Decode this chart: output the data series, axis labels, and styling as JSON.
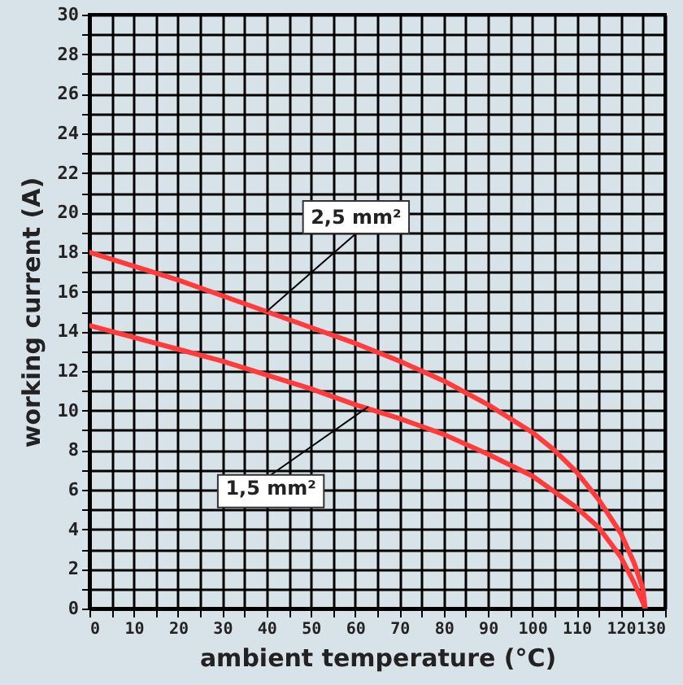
{
  "chart_data": {
    "type": "line",
    "xlabel": "ambient temperature (°C)",
    "ylabel": "working current (A)",
    "xlim": [
      0,
      130
    ],
    "ylim": [
      0,
      30
    ],
    "xticks": [
      0,
      {
        "value": 5,
        "label": null
      },
      10,
      {
        "value": 15,
        "label": null
      },
      20,
      {
        "value": 25,
        "label": null
      },
      30,
      {
        "value": 35,
        "label": null
      },
      40,
      {
        "value": 45,
        "label": null
      },
      50,
      {
        "value": 55,
        "label": null
      },
      60,
      {
        "value": 65,
        "label": null
      },
      70,
      {
        "value": 75,
        "label": null
      },
      80,
      {
        "value": 85,
        "label": null
      },
      90,
      {
        "value": 95,
        "label": null
      },
      100,
      {
        "value": 105,
        "label": null
      },
      110,
      {
        "value": 115,
        "label": null
      },
      120,
      {
        "value": 125,
        "label": null
      },
      130
    ],
    "yticks": [
      0,
      {
        "value": 1,
        "label": null
      },
      2,
      {
        "value": 3,
        "label": null
      },
      4,
      {
        "value": 5,
        "label": null
      },
      6,
      {
        "value": 7,
        "label": null
      },
      8,
      {
        "value": 9,
        "label": null
      },
      10,
      {
        "value": 11,
        "label": null
      },
      12,
      {
        "value": 13,
        "label": null
      },
      14,
      {
        "value": 15,
        "label": null
      },
      16,
      {
        "value": 17,
        "label": null
      },
      18,
      {
        "value": 19,
        "label": null
      },
      20,
      {
        "value": 21,
        "label": null
      },
      22,
      {
        "value": 23,
        "label": null
      },
      24,
      {
        "value": 25,
        "label": null
      },
      26,
      {
        "value": 27,
        "label": null
      },
      28,
      {
        "value": 29,
        "label": null
      },
      30
    ],
    "grid": true,
    "line_style": "solid",
    "series": [
      {
        "color": "#ff3b3b",
        "x": [
          0,
          10,
          20,
          30,
          40,
          50,
          60,
          70,
          80,
          90,
          100,
          105,
          110,
          115,
          120,
          123,
          125,
          125.5
        ],
        "values": [
          18,
          17.3,
          16.6,
          15.8,
          15,
          14.2,
          13.4,
          12.5,
          11.5,
          10.3,
          8.9,
          8,
          6.9,
          5.5,
          3.8,
          2.3,
          1,
          0
        ]
      },
      {
        "color": "#ff3b3b",
        "x": [
          0,
          10,
          20,
          30,
          40,
          50,
          60,
          70,
          80,
          90,
          100,
          110,
          115,
          120,
          123,
          125,
          125.5
        ],
        "values": [
          14.3,
          13.7,
          13.1,
          12.5,
          11.8,
          11.1,
          10.3,
          9.6,
          8.8,
          7.8,
          6.7,
          5.1,
          4.1,
          2.6,
          1.3,
          0.3,
          0
        ]
      }
    ],
    "annotations": [
      {
        "text": "2,5 mm²",
        "x": 40,
        "y": 15
      },
      {
        "text": "1,5 mm²",
        "x": 63,
        "y": 10.2
      }
    ]
  }
}
